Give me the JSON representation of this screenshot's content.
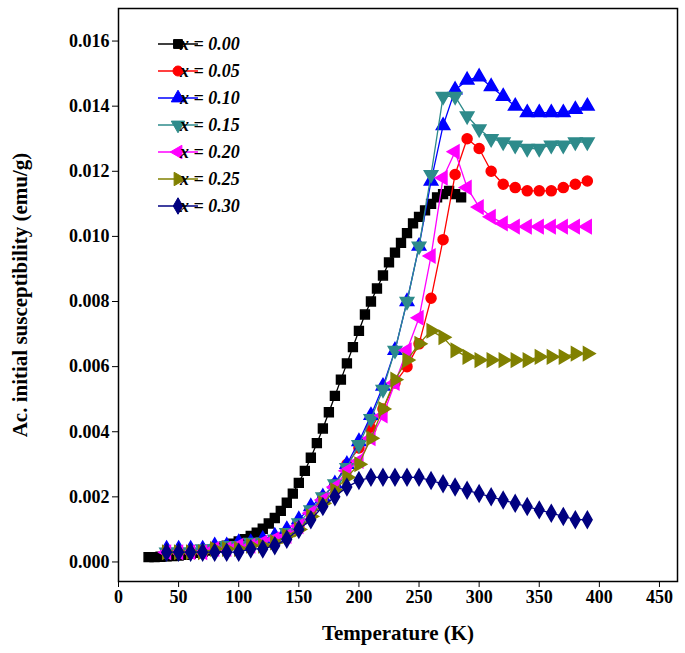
{
  "chart_data": {
    "type": "line",
    "x_label": "Temperature (K)",
    "y_label": "Ac. initial susceptibility (emu/g)",
    "xlim": [
      0,
      465
    ],
    "xticks": [
      0,
      50,
      100,
      150,
      200,
      250,
      300,
      350,
      400,
      450
    ],
    "ylim": [
      -0.0006,
      0.017
    ],
    "yticks": [
      {
        "value": 0,
        "label": "0.000"
      },
      {
        "value": 0.002,
        "label": "0.002"
      },
      {
        "value": 0.004,
        "label": "0.004"
      },
      {
        "value": 0.006,
        "label": "0.006"
      },
      {
        "value": 0.008,
        "label": "0.008"
      },
      {
        "value": 0.01,
        "label": "0.010"
      },
      {
        "value": 0.012,
        "label": "0.012"
      },
      {
        "value": 0.014,
        "label": "0.014"
      },
      {
        "value": 0.016,
        "label": "0.016"
      }
    ],
    "grid": false,
    "legend": "top-left",
    "series": [
      {
        "name": "x = 0.00",
        "color": "#000000",
        "marker": "square",
        "line_style": "solid",
        "x": [
          25,
          30,
          35,
          40,
          45,
          50,
          55,
          60,
          65,
          70,
          75,
          80,
          85,
          90,
          95,
          100,
          105,
          110,
          115,
          120,
          125,
          130,
          135,
          140,
          145,
          150,
          155,
          160,
          165,
          170,
          175,
          180,
          185,
          190,
          195,
          200,
          205,
          210,
          215,
          220,
          225,
          230,
          235,
          240,
          245,
          250,
          255,
          260,
          265,
          270,
          275,
          280,
          285
        ],
        "values": [
          0.00015,
          0.00015,
          0.00016,
          0.00017,
          0.00018,
          0.0002,
          0.00022,
          0.00025,
          0.00028,
          0.00031,
          0.00035,
          0.0004,
          0.00045,
          0.0005,
          0.00056,
          0.00063,
          0.0007,
          0.0008,
          0.0009,
          0.00102,
          0.00118,
          0.00135,
          0.00157,
          0.00182,
          0.0021,
          0.00243,
          0.0028,
          0.0032,
          0.00365,
          0.0041,
          0.0046,
          0.0051,
          0.0056,
          0.0061,
          0.0066,
          0.0071,
          0.0076,
          0.008,
          0.0084,
          0.0088,
          0.0092,
          0.0095,
          0.0098,
          0.0101,
          0.0104,
          0.0106,
          0.0108,
          0.011,
          0.0112,
          0.0113,
          0.0114,
          0.0113,
          0.0112
        ]
      },
      {
        "name": "x = 0.05",
        "color": "#ff0000",
        "marker": "circle",
        "line_style": "solid",
        "x": [
          40,
          50,
          60,
          70,
          80,
          90,
          100,
          110,
          120,
          130,
          140,
          150,
          160,
          170,
          180,
          190,
          200,
          210,
          220,
          230,
          240,
          250,
          260,
          270,
          280,
          290,
          300,
          310,
          320,
          330,
          340,
          350,
          360,
          370,
          380,
          390
        ],
        "values": [
          0.0003,
          0.0003,
          0.0003,
          0.0003,
          0.0004,
          0.0004,
          0.0005,
          0.0005,
          0.0006,
          0.0007,
          0.0008,
          0.0011,
          0.0015,
          0.002,
          0.0024,
          0.003,
          0.0035,
          0.0041,
          0.0047,
          0.0055,
          0.006,
          0.0067,
          0.0081,
          0.0099,
          0.0119,
          0.013,
          0.0127,
          0.012,
          0.0116,
          0.0115,
          0.0114,
          0.0114,
          0.0114,
          0.0115,
          0.0116,
          0.0117
        ]
      },
      {
        "name": "x = 0.10",
        "color": "#0000ff",
        "marker": "triangle-up",
        "line_style": "solid",
        "x": [
          40,
          50,
          60,
          70,
          80,
          90,
          100,
          110,
          120,
          130,
          140,
          150,
          160,
          170,
          180,
          190,
          200,
          210,
          220,
          230,
          240,
          250,
          260,
          270,
          280,
          290,
          300,
          310,
          320,
          330,
          340,
          350,
          360,
          370,
          380,
          390
        ],
        "values": [
          0.0004,
          0.0004,
          0.0004,
          0.0004,
          0.0005,
          0.0005,
          0.0006,
          0.0006,
          0.0007,
          0.0008,
          0.001,
          0.0013,
          0.0017,
          0.002,
          0.0024,
          0.003,
          0.0037,
          0.0045,
          0.0054,
          0.0065,
          0.008,
          0.0097,
          0.0117,
          0.0134,
          0.0145,
          0.0148,
          0.0149,
          0.0146,
          0.0143,
          0.014,
          0.0138,
          0.0138,
          0.0138,
          0.0138,
          0.0139,
          0.014
        ]
      },
      {
        "name": "x = 0.15",
        "color": "#2e8b8b",
        "marker": "triangle-down",
        "line_style": "solid",
        "x": [
          40,
          50,
          60,
          70,
          80,
          90,
          100,
          110,
          120,
          130,
          140,
          150,
          160,
          170,
          180,
          190,
          200,
          210,
          220,
          230,
          240,
          250,
          260,
          270,
          280,
          290,
          300,
          310,
          320,
          330,
          340,
          350,
          360,
          370,
          380,
          390
        ],
        "values": [
          0.0003,
          0.0003,
          0.0003,
          0.0004,
          0.0004,
          0.0005,
          0.0005,
          0.0006,
          0.0006,
          0.0007,
          0.0009,
          0.0012,
          0.0016,
          0.002,
          0.0024,
          0.0029,
          0.0036,
          0.0044,
          0.0053,
          0.0065,
          0.008,
          0.0097,
          0.0119,
          0.0143,
          0.0143,
          0.0137,
          0.0133,
          0.013,
          0.0129,
          0.0128,
          0.0127,
          0.0127,
          0.0128,
          0.0128,
          0.0129,
          0.0129
        ]
      },
      {
        "name": "x = 0.20",
        "color": "#ff00ff",
        "marker": "triangle-left",
        "line_style": "solid",
        "x": [
          40,
          50,
          60,
          70,
          80,
          90,
          100,
          110,
          120,
          130,
          140,
          150,
          160,
          170,
          180,
          190,
          200,
          210,
          220,
          230,
          240,
          250,
          260,
          270,
          280,
          290,
          300,
          310,
          320,
          330,
          340,
          350,
          360,
          370,
          380,
          390
        ],
        "values": [
          0.0003,
          0.0003,
          0.0003,
          0.0003,
          0.0004,
          0.0004,
          0.0005,
          0.0005,
          0.0006,
          0.0007,
          0.0008,
          0.0011,
          0.0015,
          0.0019,
          0.0023,
          0.0028,
          0.0031,
          0.0038,
          0.0045,
          0.0055,
          0.0065,
          0.0075,
          0.0094,
          0.0118,
          0.0126,
          0.0115,
          0.0109,
          0.0106,
          0.0104,
          0.0103,
          0.0103,
          0.0103,
          0.0103,
          0.0103,
          0.0103,
          0.0103
        ]
      },
      {
        "name": "x = 0.25",
        "color": "#808000",
        "marker": "triangle-right",
        "line_style": "solid",
        "x": [
          40,
          50,
          60,
          70,
          80,
          90,
          100,
          110,
          120,
          130,
          140,
          150,
          160,
          170,
          180,
          190,
          200,
          210,
          220,
          230,
          240,
          250,
          260,
          270,
          280,
          290,
          300,
          310,
          320,
          330,
          340,
          350,
          360,
          370,
          380,
          390
        ],
        "values": [
          0.0003,
          0.0003,
          0.0003,
          0.0003,
          0.0004,
          0.0004,
          0.0004,
          0.0005,
          0.0005,
          0.0006,
          0.0008,
          0.001,
          0.0014,
          0.0018,
          0.0022,
          0.0026,
          0.003,
          0.0038,
          0.0047,
          0.0056,
          0.0062,
          0.0067,
          0.0071,
          0.0069,
          0.0065,
          0.0063,
          0.0062,
          0.0062,
          0.0062,
          0.0062,
          0.0062,
          0.0063,
          0.0063,
          0.0063,
          0.0064,
          0.0064
        ]
      },
      {
        "name": "x = 0.30",
        "color": "#000080",
        "marker": "diamond",
        "line_style": "solid",
        "x": [
          40,
          50,
          60,
          70,
          80,
          90,
          100,
          110,
          120,
          130,
          140,
          150,
          160,
          170,
          180,
          190,
          200,
          210,
          220,
          230,
          240,
          250,
          260,
          270,
          280,
          290,
          300,
          310,
          320,
          330,
          340,
          350,
          360,
          370,
          380,
          390
        ],
        "values": [
          0.0003,
          0.0003,
          0.0003,
          0.0003,
          0.0003,
          0.0003,
          0.0003,
          0.0004,
          0.0004,
          0.0005,
          0.0007,
          0.001,
          0.0013,
          0.0017,
          0.002,
          0.0023,
          0.0025,
          0.0026,
          0.0026,
          0.0026,
          0.0026,
          0.0026,
          0.0025,
          0.0024,
          0.0023,
          0.0022,
          0.0021,
          0.002,
          0.0019,
          0.0018,
          0.0017,
          0.0016,
          0.0015,
          0.0014,
          0.0013,
          0.0013
        ]
      }
    ]
  }
}
